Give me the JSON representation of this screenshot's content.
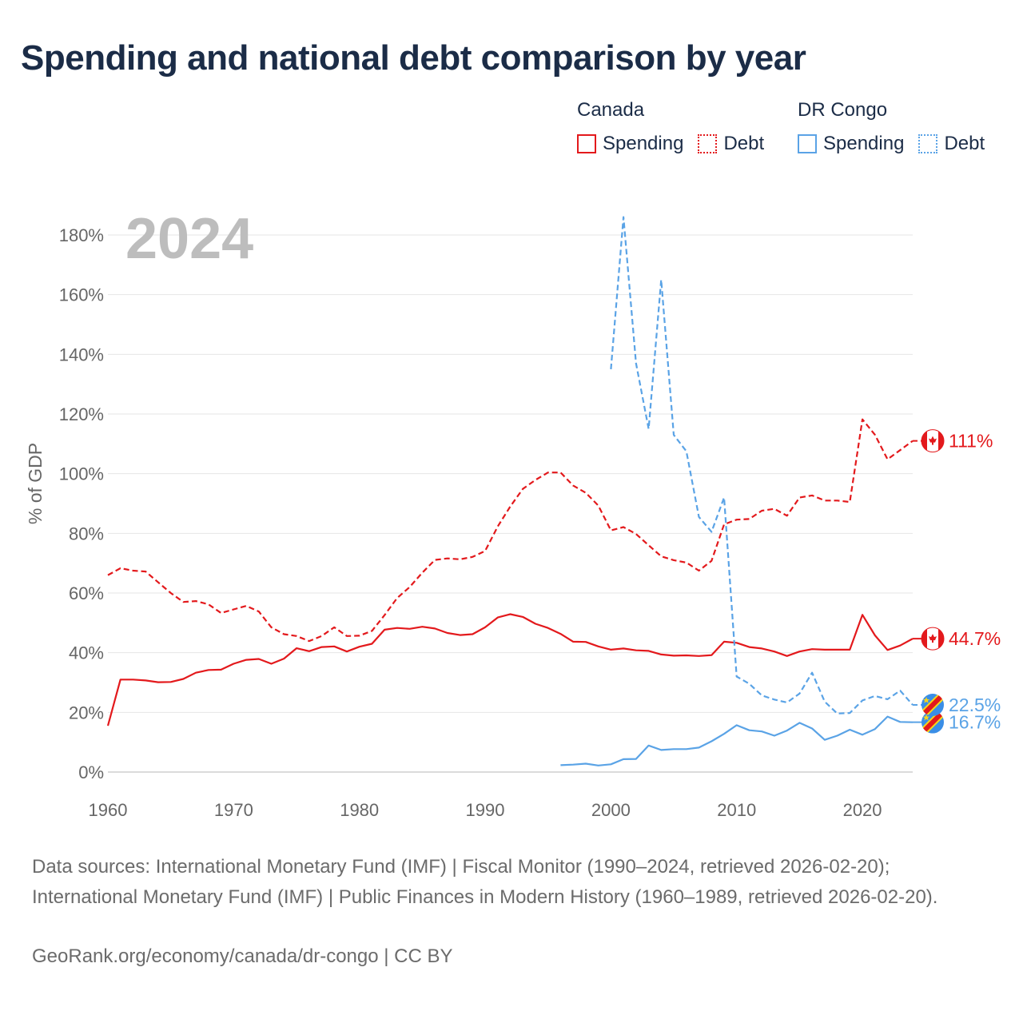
{
  "title": "Spending and national debt comparison by year",
  "legend": {
    "groups": [
      {
        "name": "Canada",
        "color": "#e3191c",
        "items": [
          {
            "label": "Spending",
            "style": "solid"
          },
          {
            "label": "Debt",
            "style": "dashed"
          }
        ]
      },
      {
        "name": "DR Congo",
        "color": "#5aa3e6",
        "items": [
          {
            "label": "Spending",
            "style": "solid"
          },
          {
            "label": "Debt",
            "style": "dashed"
          }
        ]
      }
    ]
  },
  "year_label": "2024",
  "sources": "Data sources: International Monetary Fund (IMF) | Fiscal Monitor (1990–2024, retrieved 2026-02-20); International Monetary Fund (IMF) | Public Finances in Modern History (1960–1989, retrieved 2026-02-20).",
  "credit": "GeoRank.org/economy/canada/dr-congo | CC BY",
  "chart_data": {
    "type": "line",
    "title": "Spending and national debt comparison by year",
    "xlabel": "",
    "ylabel": "% of GDP",
    "xlim": [
      1960,
      2024
    ],
    "ylim": [
      0,
      180
    ],
    "x_ticks": [
      1960,
      1970,
      1980,
      1990,
      2000,
      2010,
      2020
    ],
    "y_ticks": [
      0,
      20,
      40,
      60,
      80,
      100,
      120,
      140,
      160,
      180
    ],
    "y_tick_suffix": "%",
    "grid": true,
    "series": [
      {
        "name": "Canada Spending",
        "country": "Canada",
        "measure": "Spending",
        "color": "#e3191c",
        "dashed": false,
        "end_label": "44.7%",
        "x": [
          1960,
          1961,
          1962,
          1963,
          1964,
          1965,
          1966,
          1967,
          1968,
          1969,
          1970,
          1971,
          1972,
          1973,
          1974,
          1975,
          1976,
          1977,
          1978,
          1979,
          1980,
          1981,
          1982,
          1983,
          1984,
          1985,
          1986,
          1987,
          1988,
          1989,
          1990,
          1991,
          1992,
          1993,
          1994,
          1995,
          1996,
          1997,
          1998,
          1999,
          2000,
          2001,
          2002,
          2003,
          2004,
          2005,
          2006,
          2007,
          2008,
          2009,
          2010,
          2011,
          2012,
          2013,
          2014,
          2015,
          2016,
          2017,
          2018,
          2019,
          2020,
          2021,
          2022,
          2023,
          2024
        ],
        "values": [
          15.5,
          31,
          31,
          30.7,
          30.1,
          30.2,
          31.2,
          33.3,
          34.2,
          34.3,
          36.3,
          37.6,
          37.9,
          36.3,
          38,
          41.5,
          40.5,
          41.9,
          42.1,
          40.4,
          42,
          43,
          47.7,
          48.3,
          48,
          48.7,
          48.1,
          46.6,
          45.9,
          46.2,
          48.5,
          51.8,
          52.9,
          52,
          49.7,
          48.3,
          46.3,
          43.7,
          43.6,
          42.1,
          41,
          41.4,
          40.8,
          40.6,
          39.4,
          39,
          39.1,
          38.9,
          39.2,
          43.7,
          43.3,
          41.9,
          41.4,
          40.4,
          38.9,
          40.4,
          41.2,
          41,
          41,
          41,
          52.7,
          45.8,
          40.9,
          42.4,
          44.7
        ]
      },
      {
        "name": "Canada Debt",
        "country": "Canada",
        "measure": "Debt",
        "color": "#e3191c",
        "dashed": true,
        "end_label": "111%",
        "x": [
          1960,
          1961,
          1962,
          1963,
          1964,
          1965,
          1966,
          1967,
          1968,
          1969,
          1970,
          1971,
          1972,
          1973,
          1974,
          1975,
          1976,
          1977,
          1978,
          1979,
          1980,
          1981,
          1982,
          1983,
          1984,
          1985,
          1986,
          1987,
          1988,
          1989,
          1990,
          1991,
          1992,
          1993,
          1994,
          1995,
          1996,
          1997,
          1998,
          1999,
          2000,
          2001,
          2002,
          2003,
          2004,
          2005,
          2006,
          2007,
          2008,
          2009,
          2010,
          2011,
          2012,
          2013,
          2014,
          2015,
          2016,
          2017,
          2018,
          2019,
          2020,
          2021,
          2022,
          2023,
          2024
        ],
        "values": [
          66,
          68.3,
          67.5,
          67.2,
          63.6,
          60,
          57,
          57.3,
          56.2,
          53.3,
          54.5,
          55.7,
          53.8,
          48.5,
          46.2,
          45.6,
          43.9,
          45.6,
          48.5,
          45.6,
          45.7,
          47.3,
          52.6,
          58.3,
          62,
          66.8,
          71.1,
          71.6,
          71.3,
          72.1,
          74.1,
          82.3,
          89,
          94.9,
          97.9,
          100.4,
          100.4,
          96,
          93.6,
          89.3,
          81,
          82.1,
          79.8,
          76,
          72.3,
          71,
          70.2,
          67.5,
          70.8,
          83,
          84.6,
          84.8,
          87.6,
          88.2,
          85.9,
          92,
          92.7,
          91,
          91,
          90.5,
          118.2,
          113,
          104.8,
          107.9,
          111
        ]
      },
      {
        "name": "DR Congo Spending",
        "country": "DR Congo",
        "measure": "Spending",
        "color": "#5aa3e6",
        "dashed": false,
        "end_label": "16.7%",
        "x": [
          1996,
          1997,
          1998,
          1999,
          2000,
          2001,
          2002,
          2003,
          2004,
          2005,
          2006,
          2007,
          2008,
          2009,
          2010,
          2011,
          2012,
          2013,
          2014,
          2015,
          2016,
          2017,
          2018,
          2019,
          2020,
          2021,
          2022,
          2023,
          2024
        ],
        "values": [
          2.3,
          2.5,
          2.8,
          2.2,
          2.6,
          4.3,
          4.4,
          8.9,
          7.4,
          7.7,
          7.7,
          8.2,
          10.3,
          12.8,
          15.7,
          14,
          13.6,
          12.2,
          13.9,
          16.5,
          14.6,
          10.8,
          12.2,
          14.2,
          12.5,
          14.4,
          18.6,
          16.8,
          16.7
        ]
      },
      {
        "name": "DR Congo Debt",
        "country": "DR Congo",
        "measure": "Debt",
        "color": "#5aa3e6",
        "dashed": true,
        "end_label": "22.5%",
        "x": [
          2000,
          2001,
          2002,
          2003,
          2004,
          2005,
          2006,
          2007,
          2008,
          2009,
          2010,
          2011,
          2012,
          2013,
          2014,
          2015,
          2016,
          2017,
          2018,
          2019,
          2020,
          2021,
          2022,
          2023,
          2024
        ],
        "values": [
          135,
          186,
          137,
          115,
          165,
          113,
          107.5,
          85.5,
          80.5,
          92,
          32,
          29.6,
          25.7,
          24.3,
          23.3,
          26.3,
          33.3,
          23.6,
          19.6,
          19.8,
          24,
          25.5,
          24.4,
          27.3,
          22.5
        ]
      }
    ]
  }
}
